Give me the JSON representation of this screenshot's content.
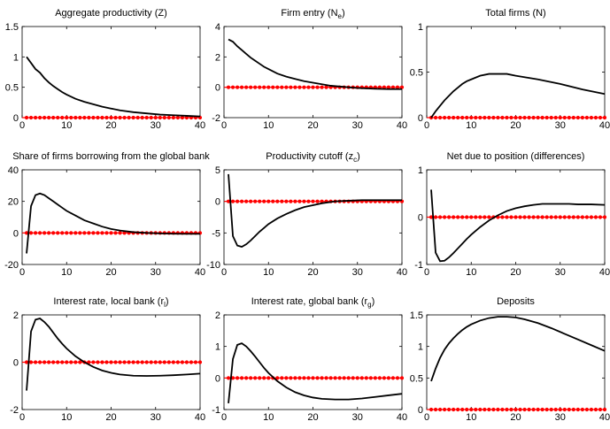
{
  "chart_data": [
    {
      "type": "line",
      "title": "Aggregate productivity (Z)",
      "title_sub": "",
      "title_after": "",
      "xlim": [
        0,
        40
      ],
      "ylim": [
        0,
        1.5
      ],
      "xticks": [
        0,
        10,
        20,
        30,
        40
      ],
      "yticks": [
        0,
        0.5,
        1,
        1.5
      ],
      "ytick_labels": [
        "0",
        "0.5",
        "1",
        "1.5"
      ],
      "x": [
        1,
        2,
        3,
        4,
        5,
        6,
        7,
        8,
        9,
        10,
        12,
        14,
        16,
        18,
        20,
        22,
        25,
        28,
        31,
        34,
        37,
        40
      ],
      "y": [
        1.0,
        0.9,
        0.8,
        0.74,
        0.65,
        0.58,
        0.52,
        0.47,
        0.42,
        0.38,
        0.31,
        0.26,
        0.22,
        0.18,
        0.15,
        0.12,
        0.09,
        0.07,
        0.05,
        0.04,
        0.03,
        0.02
      ],
      "baseline": 0
    },
    {
      "type": "line",
      "title": "Firm entry (N",
      "title_sub": "e",
      "title_after": ")",
      "xlim": [
        0,
        40
      ],
      "ylim": [
        -2,
        4
      ],
      "xticks": [
        0,
        10,
        20,
        30,
        40
      ],
      "yticks": [
        -2,
        0,
        2,
        4
      ],
      "ytick_labels": [
        "-2",
        "0",
        "2",
        "4"
      ],
      "x": [
        1,
        2,
        3,
        4,
        5,
        6,
        7,
        8,
        9,
        10,
        12,
        14,
        16,
        18,
        20,
        22,
        24,
        26,
        28,
        30,
        34,
        37,
        40
      ],
      "y": [
        3.15,
        3.0,
        2.7,
        2.45,
        2.2,
        1.95,
        1.75,
        1.55,
        1.35,
        1.2,
        0.9,
        0.7,
        0.55,
        0.4,
        0.3,
        0.2,
        0.1,
        0.05,
        0.0,
        -0.05,
        -0.1,
        -0.12,
        -0.12
      ],
      "baseline": 0
    },
    {
      "type": "line",
      "title": "Total firms (N)",
      "title_sub": "",
      "title_after": "",
      "xlim": [
        0,
        40
      ],
      "ylim": [
        0,
        1
      ],
      "xticks": [
        0,
        10,
        20,
        30,
        40
      ],
      "yticks": [
        0,
        0.5,
        1
      ],
      "ytick_labels": [
        "0",
        "0.5",
        "1"
      ],
      "x": [
        1,
        2,
        3,
        4,
        5,
        6,
        7,
        8,
        9,
        10,
        12,
        14,
        16,
        18,
        20,
        25,
        30,
        35,
        40
      ],
      "y": [
        0.0,
        0.07,
        0.13,
        0.19,
        0.24,
        0.29,
        0.33,
        0.37,
        0.4,
        0.42,
        0.46,
        0.48,
        0.48,
        0.48,
        0.46,
        0.42,
        0.37,
        0.31,
        0.26
      ],
      "baseline": 0
    },
    {
      "type": "line",
      "title": "Share of firms borrowing from the global bank",
      "title_sub": "",
      "title_after": "",
      "xlim": [
        0,
        40
      ],
      "ylim": [
        -20,
        40
      ],
      "xticks": [
        0,
        10,
        20,
        30,
        40
      ],
      "yticks": [
        -20,
        0,
        20,
        40
      ],
      "ytick_labels": [
        "-20",
        "0",
        "20",
        "40"
      ],
      "x": [
        1,
        2,
        3,
        4,
        5,
        6,
        7,
        8,
        9,
        10,
        12,
        14,
        16,
        18,
        20,
        22,
        25,
        28,
        31,
        34,
        37,
        40
      ],
      "y": [
        -13,
        17,
        24,
        25,
        24,
        22,
        20,
        18,
        16,
        14,
        11,
        8,
        6,
        4,
        2.5,
        1.5,
        0.5,
        0,
        -0.3,
        -0.5,
        -0.6,
        -0.6
      ],
      "baseline": 0
    },
    {
      "type": "line",
      "title": "Productivity cutoff (z",
      "title_sub": "c",
      "title_after": ")",
      "xlim": [
        0,
        40
      ],
      "ylim": [
        -10,
        5
      ],
      "xticks": [
        0,
        10,
        20,
        30,
        40
      ],
      "yticks": [
        -10,
        -5,
        0,
        5
      ],
      "ytick_labels": [
        "-10",
        "-5",
        "0",
        "5"
      ],
      "x": [
        1,
        2,
        3,
        4,
        5,
        6,
        7,
        8,
        9,
        10,
        12,
        14,
        16,
        18,
        20,
        22,
        25,
        28,
        31,
        34,
        37,
        40
      ],
      "y": [
        4.3,
        -5.5,
        -7,
        -7.2,
        -6.8,
        -6.2,
        -5.5,
        -4.8,
        -4.2,
        -3.6,
        -2.7,
        -2.0,
        -1.4,
        -0.9,
        -0.6,
        -0.3,
        0.0,
        0.1,
        0.2,
        0.2,
        0.2,
        0.2
      ],
      "baseline": 0
    },
    {
      "type": "line",
      "title": "Net due to position (differences)",
      "title_sub": "",
      "title_after": "",
      "xlim": [
        0,
        40
      ],
      "ylim": [
        -1,
        1
      ],
      "xticks": [
        0,
        10,
        20,
        30,
        40
      ],
      "yticks": [
        -1,
        0,
        1
      ],
      "ytick_labels": [
        "-1",
        "0",
        "1"
      ],
      "x": [
        1,
        2,
        3,
        4,
        5,
        6,
        7,
        8,
        9,
        10,
        12,
        14,
        16,
        18,
        20,
        22,
        24,
        26,
        28,
        30,
        32,
        34,
        37,
        40
      ],
      "y": [
        0.58,
        -0.75,
        -0.93,
        -0.92,
        -0.85,
        -0.76,
        -0.66,
        -0.56,
        -0.46,
        -0.37,
        -0.21,
        -0.07,
        0.04,
        0.13,
        0.19,
        0.23,
        0.26,
        0.28,
        0.28,
        0.28,
        0.28,
        0.27,
        0.27,
        0.26
      ],
      "baseline": 0
    },
    {
      "type": "line",
      "title": "Interest rate, local bank (r",
      "title_sub": "l",
      "title_after": ")",
      "xlim": [
        0,
        40
      ],
      "ylim": [
        -2,
        2
      ],
      "xticks": [
        0,
        10,
        20,
        30,
        40
      ],
      "yticks": [
        -2,
        0,
        2
      ],
      "ytick_labels": [
        "-2",
        "0",
        "2"
      ],
      "x": [
        1,
        2,
        3,
        4,
        5,
        6,
        7,
        8,
        9,
        10,
        12,
        14,
        16,
        18,
        20,
        22,
        25,
        28,
        31,
        34,
        37,
        40
      ],
      "y": [
        -1.2,
        1.3,
        1.8,
        1.85,
        1.7,
        1.5,
        1.25,
        1.0,
        0.78,
        0.58,
        0.25,
        0.0,
        -0.2,
        -0.35,
        -0.45,
        -0.52,
        -0.57,
        -0.58,
        -0.57,
        -0.55,
        -0.52,
        -0.48
      ],
      "baseline": 0
    },
    {
      "type": "line",
      "title": "Interest rate, global bank (r",
      "title_sub": "g",
      "title_after": ")",
      "xlim": [
        0,
        40
      ],
      "ylim": [
        -1,
        2
      ],
      "xticks": [
        0,
        10,
        20,
        30,
        40
      ],
      "yticks": [
        -1,
        0,
        1,
        2
      ],
      "ytick_labels": [
        "-1",
        "0",
        "1",
        "2"
      ],
      "x": [
        1,
        2,
        3,
        4,
        5,
        6,
        7,
        8,
        9,
        10,
        12,
        14,
        16,
        18,
        20,
        22,
        25,
        28,
        31,
        34,
        37,
        40
      ],
      "y": [
        -0.8,
        0.6,
        1.05,
        1.1,
        1.0,
        0.85,
        0.68,
        0.5,
        0.32,
        0.16,
        -0.1,
        -0.3,
        -0.45,
        -0.55,
        -0.62,
        -0.66,
        -0.68,
        -0.68,
        -0.65,
        -0.6,
        -0.55,
        -0.5
      ],
      "baseline": 0
    },
    {
      "type": "line",
      "title": "Deposits",
      "title_sub": "",
      "title_after": "",
      "xlim": [
        0,
        40
      ],
      "ylim": [
        0,
        1.5
      ],
      "xticks": [
        0,
        10,
        20,
        30,
        40
      ],
      "yticks": [
        0,
        0.5,
        1,
        1.5
      ],
      "ytick_labels": [
        "0",
        "0.5",
        "1",
        "1.5"
      ],
      "x": [
        1,
        2,
        3,
        4,
        5,
        6,
        7,
        8,
        9,
        10,
        12,
        14,
        16,
        18,
        20,
        22,
        25,
        28,
        31,
        34,
        37,
        40
      ],
      "y": [
        0.45,
        0.65,
        0.82,
        0.95,
        1.05,
        1.13,
        1.2,
        1.26,
        1.31,
        1.35,
        1.41,
        1.45,
        1.47,
        1.47,
        1.46,
        1.43,
        1.37,
        1.29,
        1.2,
        1.11,
        1.02,
        0.93
      ],
      "baseline": 0
    }
  ]
}
